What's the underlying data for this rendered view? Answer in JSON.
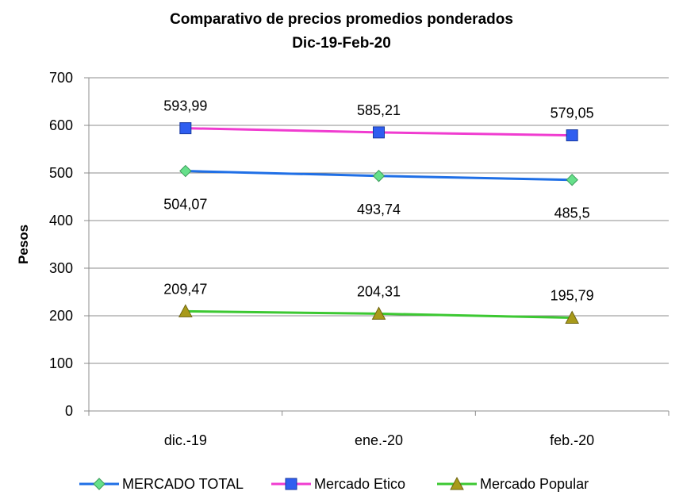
{
  "chart_data": {
    "type": "line",
    "title": "Comparativo de precios promedios ponderados",
    "subtitle": "Dic-19-Feb-20",
    "xlabel": "",
    "ylabel": "Pesos",
    "categories": [
      "dic.-19",
      "ene.-20",
      "feb.-20"
    ],
    "ylim": [
      0,
      700
    ],
    "yticks": [
      "0",
      "100",
      "200",
      "300",
      "400",
      "500",
      "600",
      "700"
    ],
    "grid": true,
    "legend_position": "bottom",
    "series": [
      {
        "name": "MERCADO TOTAL",
        "values": [
          504.07,
          493.74,
          485.5
        ],
        "labels": [
          "504,07",
          "493,74",
          "485,5"
        ],
        "color": "#1f6fe6",
        "marker": "diamond",
        "marker_color": "#66e08a",
        "label_position": "below"
      },
      {
        "name": "Mercado Etico",
        "values": [
          593.99,
          585.21,
          579.05
        ],
        "labels": [
          "593,99",
          "585,21",
          "579,05"
        ],
        "color": "#f03cd0",
        "marker": "square",
        "marker_color": "#2f5ef0",
        "label_position": "above"
      },
      {
        "name": "Mercado Popular",
        "values": [
          209.47,
          204.31,
          195.79
        ],
        "labels": [
          "209,47",
          "204,31",
          "195,79"
        ],
        "color": "#3cc832",
        "marker": "triangle",
        "marker_color": "#a89a1a",
        "label_position": "above"
      }
    ]
  }
}
